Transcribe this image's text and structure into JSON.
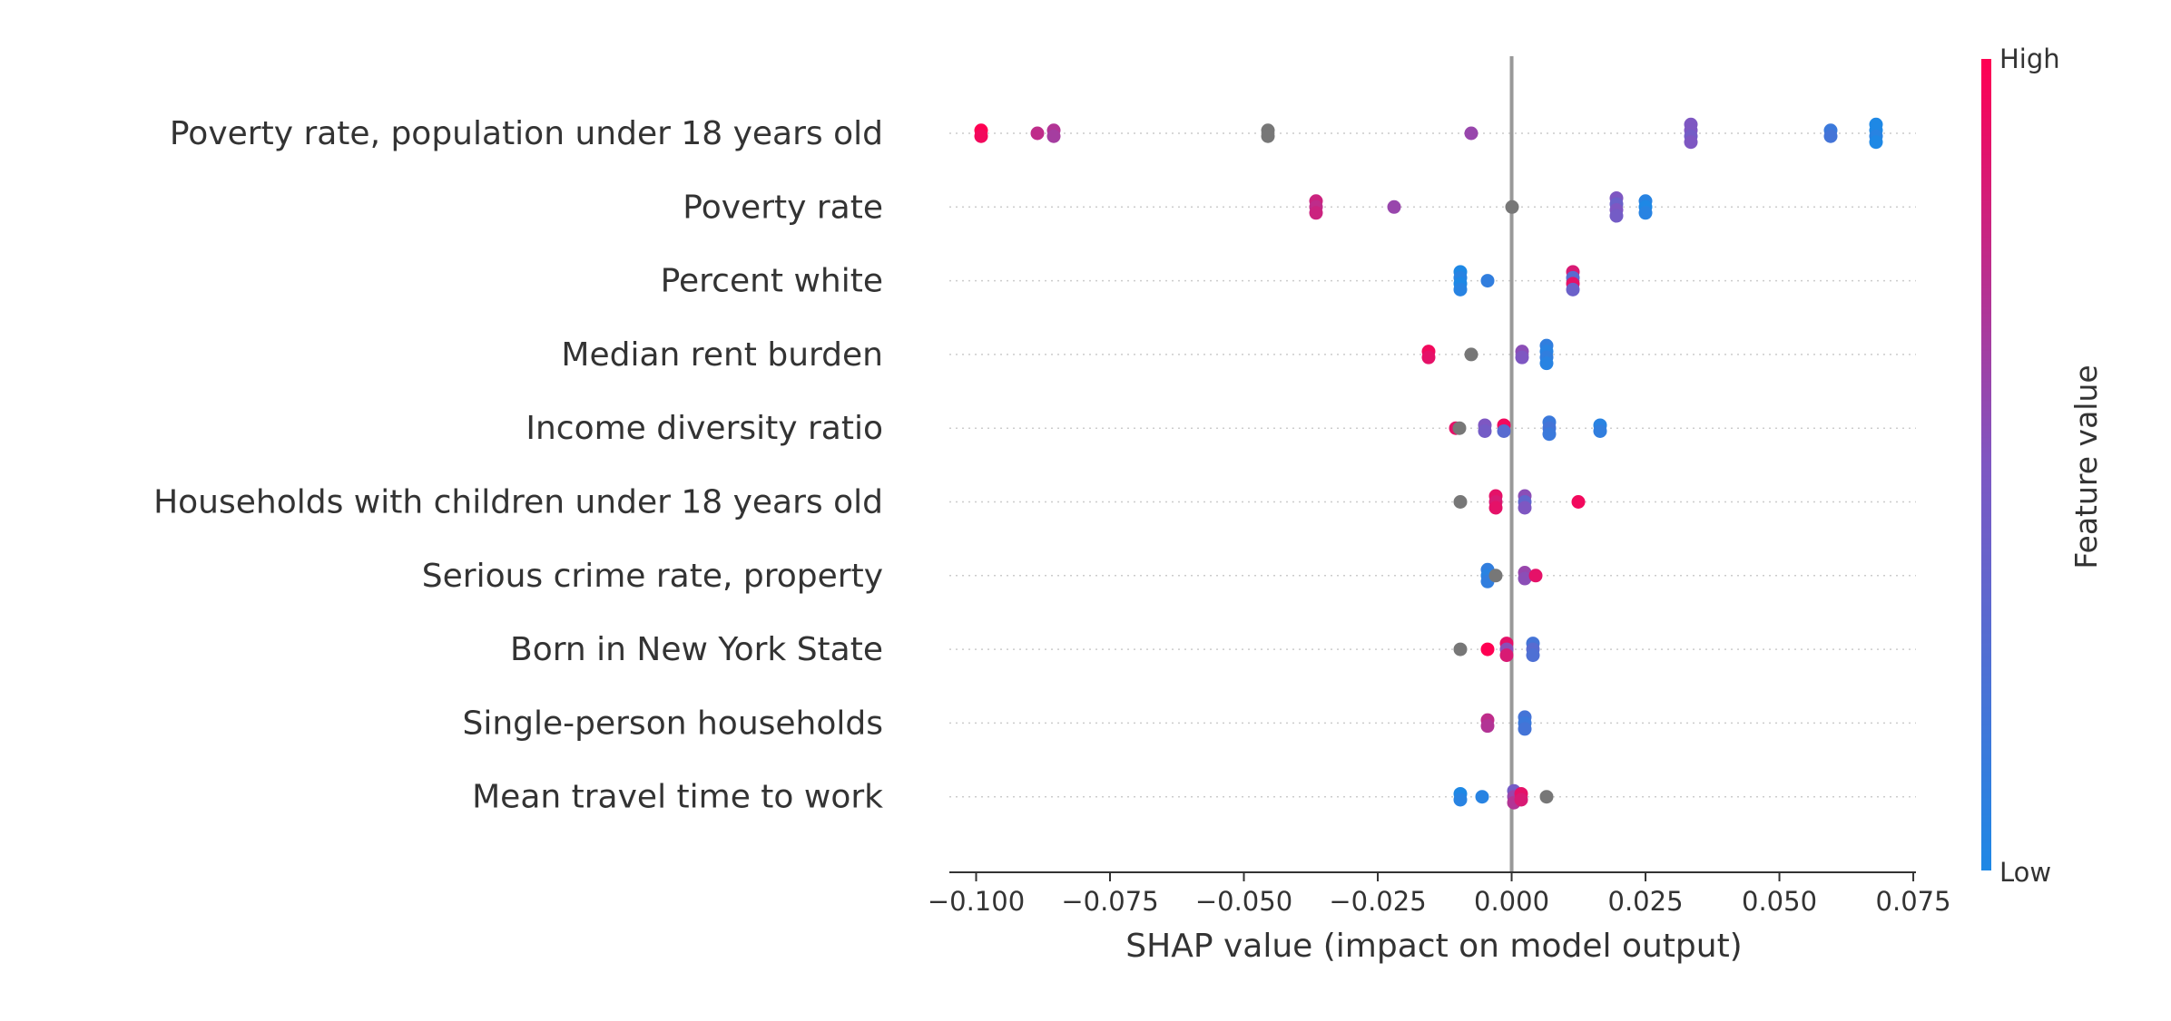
{
  "chart_data": {
    "type": "scatter",
    "xlabel": "SHAP value (impact on model output)",
    "xlim": [
      -0.105,
      0.0755
    ],
    "x_ticks": [
      {
        "value": -0.1,
        "label": "−0.100"
      },
      {
        "value": -0.075,
        "label": "−0.075"
      },
      {
        "value": -0.05,
        "label": "−0.050"
      },
      {
        "value": -0.025,
        "label": "−0.025"
      },
      {
        "value": 0.0,
        "label": "0.000"
      },
      {
        "value": 0.025,
        "label": "0.025"
      },
      {
        "value": 0.05,
        "label": "0.050"
      },
      {
        "value": 0.075,
        "label": "0.075"
      }
    ],
    "colorbar": {
      "title": "Feature value",
      "high_label": "High",
      "low_label": "Low",
      "high_color": "#ff0052",
      "low_color": "#1e88e5",
      "missing_color": "#777777"
    },
    "features": [
      {
        "name": "Poverty rate, population under 18 years old",
        "points": [
          {
            "x": -0.099,
            "v": 1.0
          },
          {
            "x": -0.099,
            "v": 0.95
          },
          {
            "x": -0.0885,
            "v": 0.75
          },
          {
            "x": -0.0855,
            "v": 0.7
          },
          {
            "x": -0.0855,
            "v": 0.65
          },
          {
            "x": -0.0455,
            "v": null
          },
          {
            "x": -0.0455,
            "v": null
          },
          {
            "x": -0.0075,
            "v": 0.6
          },
          {
            "x": 0.0335,
            "v": 0.5
          },
          {
            "x": 0.0335,
            "v": 0.5
          },
          {
            "x": 0.0335,
            "v": 0.45
          },
          {
            "x": 0.0335,
            "v": 0.5
          },
          {
            "x": 0.0595,
            "v": 0.15
          },
          {
            "x": 0.0595,
            "v": 0.2
          },
          {
            "x": 0.068,
            "v": 0.0
          },
          {
            "x": 0.068,
            "v": 0.0
          },
          {
            "x": 0.068,
            "v": 0.05
          },
          {
            "x": 0.068,
            "v": 0.0
          }
        ]
      },
      {
        "name": "Poverty rate",
        "points": [
          {
            "x": -0.0365,
            "v": 0.8
          },
          {
            "x": -0.0365,
            "v": 0.75
          },
          {
            "x": -0.0365,
            "v": 0.8
          },
          {
            "x": -0.022,
            "v": 0.6
          },
          {
            "x": 0.0,
            "v": null
          },
          {
            "x": 0.0195,
            "v": 0.5
          },
          {
            "x": 0.0195,
            "v": 0.4
          },
          {
            "x": 0.0195,
            "v": 0.5
          },
          {
            "x": 0.0195,
            "v": 0.45
          },
          {
            "x": 0.025,
            "v": 0.05
          },
          {
            "x": 0.025,
            "v": 0.0
          },
          {
            "x": 0.025,
            "v": 0.05
          }
        ]
      },
      {
        "name": "Percent white",
        "points": [
          {
            "x": -0.0095,
            "v": 0.0
          },
          {
            "x": -0.0095,
            "v": 0.05
          },
          {
            "x": -0.0095,
            "v": 0.0
          },
          {
            "x": -0.0095,
            "v": 0.05
          },
          {
            "x": -0.0045,
            "v": 0.1
          },
          {
            "x": 0.0115,
            "v": 0.85
          },
          {
            "x": 0.0115,
            "v": 0.3
          },
          {
            "x": 0.0115,
            "v": 0.9
          },
          {
            "x": 0.0115,
            "v": 0.4
          }
        ]
      },
      {
        "name": "Median rent burden",
        "points": [
          {
            "x": -0.0155,
            "v": 0.95
          },
          {
            "x": -0.0155,
            "v": 0.9
          },
          {
            "x": -0.0075,
            "v": null
          },
          {
            "x": 0.002,
            "v": 0.55
          },
          {
            "x": 0.002,
            "v": 0.5
          },
          {
            "x": 0.0065,
            "v": 0.1
          },
          {
            "x": 0.0065,
            "v": 0.05
          },
          {
            "x": 0.0065,
            "v": 0.1
          },
          {
            "x": 0.0065,
            "v": 0.05
          }
        ]
      },
      {
        "name": "Income diversity ratio",
        "points": [
          {
            "x": -0.0105,
            "v": 0.9
          },
          {
            "x": -0.0098,
            "v": null
          },
          {
            "x": -0.005,
            "v": 0.5
          },
          {
            "x": -0.005,
            "v": 0.45
          },
          {
            "x": -0.0015,
            "v": 0.95
          },
          {
            "x": -0.0015,
            "v": 0.3
          },
          {
            "x": 0.007,
            "v": 0.15
          },
          {
            "x": 0.007,
            "v": 0.2
          },
          {
            "x": 0.007,
            "v": 0.15
          },
          {
            "x": 0.0165,
            "v": 0.05
          },
          {
            "x": 0.0165,
            "v": 0.1
          }
        ]
      },
      {
        "name": "Households with children under 18 years old",
        "points": [
          {
            "x": -0.0095,
            "v": null
          },
          {
            "x": -0.003,
            "v": 0.9
          },
          {
            "x": -0.003,
            "v": 0.85
          },
          {
            "x": -0.003,
            "v": 0.9
          },
          {
            "x": 0.0025,
            "v": 0.55
          },
          {
            "x": 0.0025,
            "v": 0.35
          },
          {
            "x": 0.0025,
            "v": 0.5
          },
          {
            "x": 0.0125,
            "v": 0.95
          }
        ]
      },
      {
        "name": "Serious crime rate, property",
        "points": [
          {
            "x": -0.0045,
            "v": 0.1
          },
          {
            "x": -0.0045,
            "v": 0.05
          },
          {
            "x": -0.0045,
            "v": 0.1
          },
          {
            "x": -0.003,
            "v": null
          },
          {
            "x": 0.0025,
            "v": 0.6
          },
          {
            "x": 0.0025,
            "v": 0.55
          },
          {
            "x": 0.0045,
            "v": 0.9
          }
        ]
      },
      {
        "name": "Born in New York State",
        "points": [
          {
            "x": -0.0095,
            "v": null
          },
          {
            "x": -0.0045,
            "v": 1.0
          },
          {
            "x": -0.001,
            "v": 0.9
          },
          {
            "x": -0.001,
            "v": 0.55
          },
          {
            "x": -0.001,
            "v": 0.85
          },
          {
            "x": 0.004,
            "v": 0.2
          },
          {
            "x": 0.004,
            "v": 0.3
          },
          {
            "x": 0.004,
            "v": 0.25
          }
        ]
      },
      {
        "name": "Single-person households",
        "points": [
          {
            "x": -0.0045,
            "v": 0.75
          },
          {
            "x": -0.0045,
            "v": 0.7
          },
          {
            "x": 0.0025,
            "v": 0.2
          },
          {
            "x": 0.0025,
            "v": 0.15
          },
          {
            "x": 0.0025,
            "v": 0.2
          }
        ]
      },
      {
        "name": "Mean travel time to work",
        "points": [
          {
            "x": -0.0095,
            "v": 0.0
          },
          {
            "x": -0.0095,
            "v": 0.05
          },
          {
            "x": -0.0055,
            "v": 0.05
          },
          {
            "x": 0.0005,
            "v": 0.45
          },
          {
            "x": 0.0005,
            "v": 0.6
          },
          {
            "x": 0.0005,
            "v": 0.7
          },
          {
            "x": 0.0018,
            "v": 0.9
          },
          {
            "x": 0.0018,
            "v": 0.85
          },
          {
            "x": 0.0065,
            "v": null
          }
        ]
      }
    ]
  }
}
